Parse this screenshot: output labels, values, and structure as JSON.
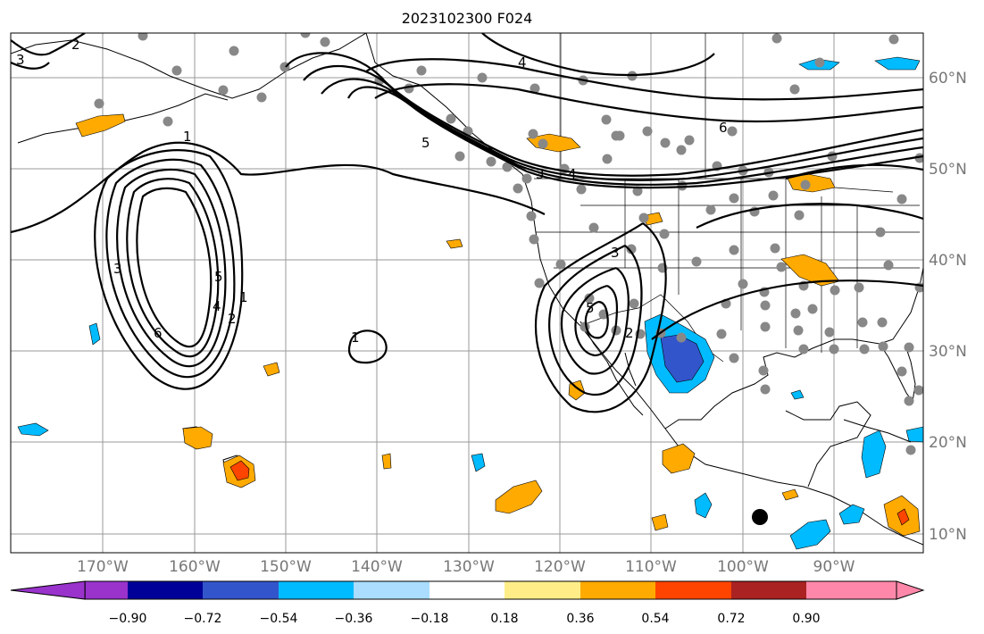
{
  "title": "2023102300 F024",
  "map": {
    "lon_ticks": [
      "170°W",
      "160°W",
      "150°W",
      "140°W",
      "130°W",
      "120°W",
      "110°W",
      "100°W",
      "90°W"
    ],
    "lat_ticks": [
      "60°N",
      "50°N",
      "40°N",
      "30°N",
      "20°N",
      "10°N"
    ],
    "extent": {
      "lon_min": -180,
      "lon_max": -80,
      "lat_min": 8,
      "lat_max": 65
    }
  },
  "contours": {
    "levels": [
      "1",
      "2",
      "3",
      "4",
      "5",
      "6"
    ]
  },
  "colorbar": {
    "tick_labels": [
      "−0.90",
      "−0.72",
      "−0.54",
      "−0.36",
      "−0.18",
      "0.18",
      "0.36",
      "0.54",
      "0.72",
      "0.90"
    ],
    "bins": [
      {
        "color": "#9933cc"
      },
      {
        "color": "#000099"
      },
      {
        "color": "#3355cc"
      },
      {
        "color": "#00bbff"
      },
      {
        "color": "#aaddff"
      },
      {
        "color": "#ffffff"
      },
      {
        "color": "#ffee88"
      },
      {
        "color": "#ffaa00"
      },
      {
        "color": "#ff4400"
      },
      {
        "color": "#aa2222"
      },
      {
        "color": "#ff88aa"
      }
    ]
  },
  "station_color": "#888888",
  "marker_color": "#000000"
}
